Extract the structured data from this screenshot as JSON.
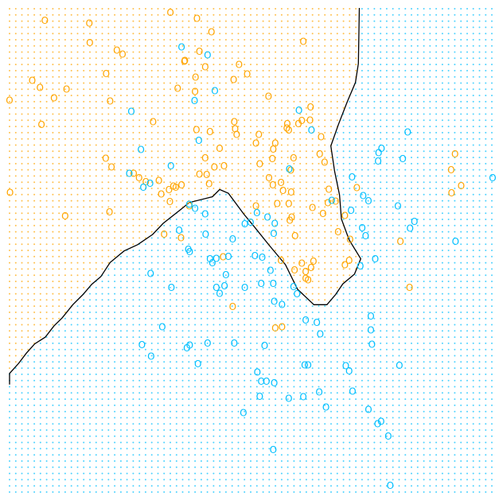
{
  "chart_data": {
    "type": "scatter",
    "title": "",
    "xlabel": "",
    "ylabel": "",
    "xlim": [
      0,
      1
    ],
    "ylim": [
      0,
      1
    ],
    "grid": false,
    "colors": {
      "orange": "#ffa500",
      "blue": "#00bfff",
      "boundary": "#000000",
      "background": "#ffffff"
    },
    "marker_glyph": "O",
    "background_lattice": {
      "step": 0.0128,
      "dot_radius_px": 1.0,
      "opacity": 0.7
    },
    "decision_boundary": [
      [
        0.0,
        0.222
      ],
      [
        0.0,
        0.245
      ],
      [
        0.019,
        0.266
      ],
      [
        0.035,
        0.287
      ],
      [
        0.052,
        0.306
      ],
      [
        0.074,
        0.32
      ],
      [
        0.092,
        0.343
      ],
      [
        0.109,
        0.36
      ],
      [
        0.131,
        0.387
      ],
      [
        0.152,
        0.408
      ],
      [
        0.17,
        0.429
      ],
      [
        0.189,
        0.445
      ],
      [
        0.208,
        0.474
      ],
      [
        0.237,
        0.498
      ],
      [
        0.265,
        0.511
      ],
      [
        0.296,
        0.532
      ],
      [
        0.318,
        0.555
      ],
      [
        0.356,
        0.585
      ],
      [
        0.372,
        0.598
      ],
      [
        0.42,
        0.61
      ],
      [
        0.435,
        0.625
      ],
      [
        0.453,
        0.617
      ],
      [
        0.485,
        0.574
      ],
      [
        0.509,
        0.545
      ],
      [
        0.538,
        0.509
      ],
      [
        0.571,
        0.47
      ],
      [
        0.596,
        0.419
      ],
      [
        0.63,
        0.387
      ],
      [
        0.657,
        0.387
      ],
      [
        0.675,
        0.408
      ],
      [
        0.69,
        0.43
      ],
      [
        0.714,
        0.45
      ],
      [
        0.727,
        0.482
      ],
      [
        0.703,
        0.521
      ],
      [
        0.687,
        0.564
      ],
      [
        0.683,
        0.614
      ],
      [
        0.673,
        0.662
      ],
      [
        0.665,
        0.715
      ],
      [
        0.681,
        0.76
      ],
      [
        0.699,
        0.806
      ],
      [
        0.716,
        0.846
      ],
      [
        0.722,
        0.885
      ],
      [
        0.724,
        1.0
      ]
    ],
    "series": [
      {
        "color": "orange",
        "points": [
          [
            0.073,
            0.974
          ],
          [
            0.165,
            0.968
          ],
          [
            0.222,
            0.912
          ],
          [
            0.047,
            0.85
          ],
          [
            0.063,
            0.835
          ],
          [
            0.092,
            0.814
          ],
          [
            0.0,
            0.809
          ],
          [
            0.118,
            0.832
          ],
          [
            0.2,
            0.864
          ],
          [
            0.166,
            0.928
          ],
          [
            0.234,
            0.904
          ],
          [
            0.208,
            0.807
          ],
          [
            0.066,
            0.759
          ],
          [
            0.297,
            0.764
          ],
          [
            0.362,
            0.889
          ],
          [
            0.348,
            0.833
          ],
          [
            0.385,
            0.856
          ],
          [
            0.363,
            0.891
          ],
          [
            0.384,
            0.827
          ],
          [
            0.333,
            0.99
          ],
          [
            0.388,
            0.978
          ],
          [
            0.393,
            0.91
          ],
          [
            0.405,
            0.878
          ],
          [
            0.475,
            0.883
          ],
          [
            0.464,
            0.851
          ],
          [
            0.492,
            0.863
          ],
          [
            0.608,
            0.93
          ],
          [
            0.418,
            0.95
          ],
          [
            0.536,
            0.817
          ],
          [
            0.465,
            0.764
          ],
          [
            0.467,
            0.75
          ],
          [
            0.47,
            0.738
          ],
          [
            0.516,
            0.738
          ],
          [
            0.51,
            0.72
          ],
          [
            0.55,
            0.72
          ],
          [
            0.546,
            0.708
          ],
          [
            0.575,
            0.76
          ],
          [
            0.574,
            0.751
          ],
          [
            0.578,
            0.747
          ],
          [
            0.605,
            0.767
          ],
          [
            0.623,
            0.795
          ],
          [
            0.622,
            0.768
          ],
          [
            0.598,
            0.76
          ],
          [
            0.645,
            0.733
          ],
          [
            0.642,
            0.698
          ],
          [
            0.588,
            0.69
          ],
          [
            0.652,
            0.681
          ],
          [
            0.661,
            0.625
          ],
          [
            0.675,
            0.6
          ],
          [
            0.694,
            0.571
          ],
          [
            0.68,
            0.537
          ],
          [
            0.705,
            0.521
          ],
          [
            0.703,
            0.478
          ],
          [
            0.694,
            0.469
          ],
          [
            0.629,
            0.476
          ],
          [
            0.624,
            0.463
          ],
          [
            0.613,
            0.441
          ],
          [
            0.618,
            0.438
          ],
          [
            0.59,
            0.458
          ],
          [
            0.562,
            0.478
          ],
          [
            0.584,
            0.567
          ],
          [
            0.578,
            0.595
          ],
          [
            0.583,
            0.619
          ],
          [
            0.566,
            0.622
          ],
          [
            0.545,
            0.634
          ],
          [
            0.562,
            0.639
          ],
          [
            0.537,
            0.649
          ],
          [
            0.544,
            0.688
          ],
          [
            0.582,
            0.664
          ],
          [
            0.518,
            0.677
          ],
          [
            0.444,
            0.673
          ],
          [
            0.424,
            0.671
          ],
          [
            0.405,
            0.69
          ],
          [
            0.199,
            0.689
          ],
          [
            0.211,
            0.671
          ],
          [
            0.257,
            0.658
          ],
          [
            0.268,
            0.649
          ],
          [
            0.282,
            0.64
          ],
          [
            0.309,
            0.643
          ],
          [
            0.339,
            0.631
          ],
          [
            0.33,
            0.624
          ],
          [
            0.344,
            0.629
          ],
          [
            0.356,
            0.634
          ],
          [
            0.332,
            0.599
          ],
          [
            0.314,
            0.615
          ],
          [
            0.372,
            0.59
          ],
          [
            0.408,
            0.655
          ],
          [
            0.393,
            0.656
          ],
          [
            0.413,
            0.636
          ],
          [
            0.001,
            0.618
          ],
          [
            0.115,
            0.57
          ],
          [
            0.207,
            0.578
          ],
          [
            0.32,
            0.532
          ],
          [
            0.355,
            0.525
          ],
          [
            0.442,
            0.485
          ],
          [
            0.462,
            0.383
          ],
          [
            0.55,
            0.338
          ],
          [
            0.564,
            0.341
          ],
          [
            0.649,
            0.575
          ],
          [
            0.719,
            0.628
          ],
          [
            0.809,
            0.517
          ],
          [
            0.922,
            0.698
          ],
          [
            0.914,
            0.665
          ],
          [
            0.915,
            0.617
          ],
          [
            0.935,
            0.632
          ],
          [
            0.828,
            0.422
          ],
          [
            0.51,
            0.59
          ],
          [
            0.554,
            0.595
          ],
          [
            0.591,
            0.529
          ],
          [
            0.58,
            0.561
          ],
          [
            0.659,
            0.597
          ],
          [
            0.627,
            0.587
          ],
          [
            0.605,
            0.472
          ],
          [
            0.613,
            0.455
          ],
          [
            0.435,
            0.709
          ],
          [
            0.415,
            0.744
          ],
          [
            0.387,
            0.748
          ]
        ]
      },
      {
        "color": "blue",
        "points": [
          [
            0.356,
            0.919
          ],
          [
            0.41,
            0.902
          ],
          [
            0.425,
            0.828
          ],
          [
            0.383,
            0.808
          ],
          [
            0.252,
            0.786
          ],
          [
            0.272,
            0.707
          ],
          [
            0.334,
            0.673
          ],
          [
            0.392,
            0.726
          ],
          [
            0.248,
            0.658
          ],
          [
            0.277,
            0.629
          ],
          [
            0.291,
            0.637
          ],
          [
            0.599,
            0.788
          ],
          [
            0.625,
            0.747
          ],
          [
            0.579,
            0.667
          ],
          [
            0.824,
            0.743
          ],
          [
            0.764,
            0.7
          ],
          [
            0.77,
            0.709
          ],
          [
            0.763,
            0.683
          ],
          [
            0.814,
            0.688
          ],
          [
            0.709,
            0.65
          ],
          [
            0.732,
            0.612
          ],
          [
            0.743,
            0.601
          ],
          [
            0.804,
            0.59
          ],
          [
            0.707,
            0.581
          ],
          [
            0.838,
            0.558
          ],
          [
            0.829,
            0.544
          ],
          [
            0.73,
            0.545
          ],
          [
            0.667,
            0.602
          ],
          [
            0.512,
            0.576
          ],
          [
            0.487,
            0.553
          ],
          [
            0.499,
            0.557
          ],
          [
            0.534,
            0.567
          ],
          [
            0.547,
            0.534
          ],
          [
            0.549,
            0.554
          ],
          [
            0.372,
            0.594
          ],
          [
            0.384,
            0.585
          ],
          [
            0.405,
            0.574
          ],
          [
            0.351,
            0.54
          ],
          [
            0.37,
            0.501
          ],
          [
            0.373,
            0.496
          ],
          [
            0.406,
            0.532
          ],
          [
            0.462,
            0.522
          ],
          [
            0.415,
            0.481
          ],
          [
            0.428,
            0.482
          ],
          [
            0.42,
            0.473
          ],
          [
            0.453,
            0.486
          ],
          [
            0.508,
            0.488
          ],
          [
            0.523,
            0.484
          ],
          [
            0.54,
            0.457
          ],
          [
            0.292,
            0.451
          ],
          [
            0.448,
            0.448
          ],
          [
            0.428,
            0.422
          ],
          [
            0.445,
            0.425
          ],
          [
            0.435,
            0.41
          ],
          [
            0.487,
            0.422
          ],
          [
            0.521,
            0.43
          ],
          [
            0.546,
            0.43
          ],
          [
            0.588,
            0.424
          ],
          [
            0.595,
            0.409
          ],
          [
            0.548,
            0.393
          ],
          [
            0.564,
            0.387
          ],
          [
            0.335,
            0.422
          ],
          [
            0.316,
            0.341
          ],
          [
            0.41,
            0.307
          ],
          [
            0.367,
            0.297
          ],
          [
            0.465,
            0.307
          ],
          [
            0.528,
            0.302
          ],
          [
            0.613,
            0.355
          ],
          [
            0.636,
            0.35
          ],
          [
            0.643,
            0.326
          ],
          [
            0.274,
            0.304
          ],
          [
            0.373,
            0.303
          ],
          [
            0.293,
            0.28
          ],
          [
            0.39,
            0.264
          ],
          [
            0.513,
            0.247
          ],
          [
            0.521,
            0.228
          ],
          [
            0.532,
            0.228
          ],
          [
            0.548,
            0.225
          ],
          [
            0.611,
            0.262
          ],
          [
            0.618,
            0.262
          ],
          [
            0.518,
            0.197
          ],
          [
            0.578,
            0.193
          ],
          [
            0.608,
            0.196
          ],
          [
            0.641,
            0.206
          ],
          [
            0.655,
            0.175
          ],
          [
            0.696,
            0.26
          ],
          [
            0.703,
            0.25
          ],
          [
            0.71,
            0.208
          ],
          [
            0.75,
            0.305
          ],
          [
            0.748,
            0.334
          ],
          [
            0.748,
            0.363
          ],
          [
            0.726,
            0.466
          ],
          [
            0.757,
            0.481
          ],
          [
            0.737,
            0.529
          ],
          [
            0.923,
            0.517
          ],
          [
            1.0,
            0.649
          ],
          [
            0.807,
            0.261
          ],
          [
            0.743,
            0.17
          ],
          [
            0.762,
            0.14
          ],
          [
            0.769,
            0.145
          ],
          [
            0.784,
            0.115
          ],
          [
            0.484,
            0.163
          ],
          [
            0.546,
            0.087
          ],
          [
            0.788,
            0.013
          ]
        ]
      }
    ]
  }
}
